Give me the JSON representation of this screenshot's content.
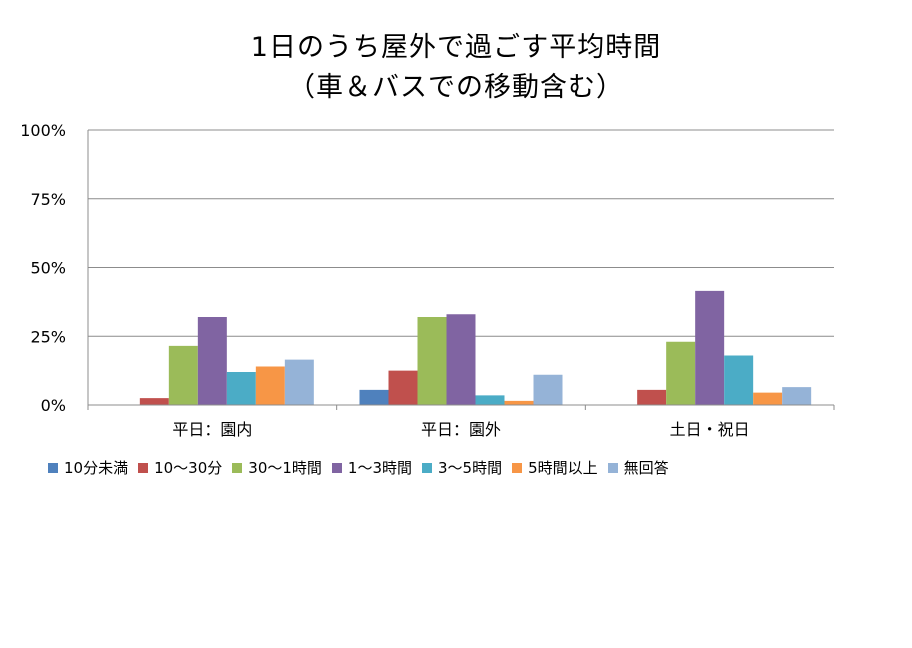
{
  "chart_data": {
    "type": "bar",
    "title_lines": [
      "1日のうち屋外で過ごす平均時間",
      "（車＆バスでの移動含む）"
    ],
    "categories": [
      "平日：園内",
      "平日：園外",
      "土日・祝日"
    ],
    "series": [
      {
        "name": "10分未満",
        "color": "#4f81bd",
        "values": [
          0,
          5.5,
          0
        ]
      },
      {
        "name": "10〜30分",
        "color": "#c0504d",
        "values": [
          2.5,
          12.5,
          5.5
        ]
      },
      {
        "name": "30〜1時間",
        "color": "#9bbb59",
        "values": [
          21.5,
          32,
          23
        ]
      },
      {
        "name": "1〜3時間",
        "color": "#8064a2",
        "values": [
          32,
          33,
          41.5
        ]
      },
      {
        "name": "3〜5時間",
        "color": "#4bacc6",
        "values": [
          12,
          3.5,
          18
        ]
      },
      {
        "name": "5時間以上",
        "color": "#f79646",
        "values": [
          14,
          1.5,
          4.5
        ]
      },
      {
        "name": "無回答",
        "color": "#95b3d7",
        "values": [
          16.5,
          11,
          6.5
        ]
      }
    ],
    "yticks": [
      "0%",
      "25%",
      "50%",
      "75%",
      "100%"
    ],
    "ylim": [
      0,
      100
    ],
    "grid": true,
    "legend_position": "bottom"
  }
}
